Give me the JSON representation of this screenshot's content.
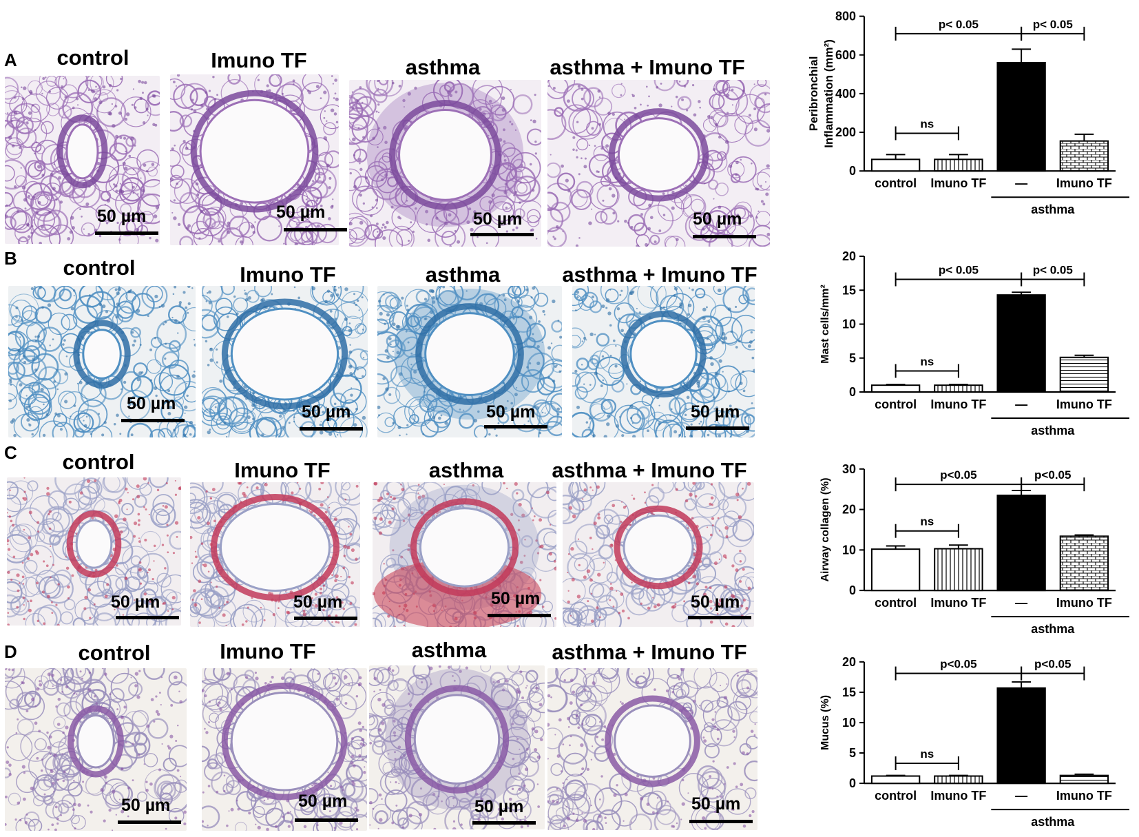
{
  "rows": [
    {
      "letter": "A",
      "panels": [
        {
          "title": "control",
          "scale": "50 µm",
          "stain": "he",
          "lumen": "small"
        },
        {
          "title": "Imuno TF",
          "scale": "50 µm",
          "stain": "he",
          "lumen": "large"
        },
        {
          "title": "asthma",
          "scale": "50 µm",
          "stain": "he",
          "lumen": "inflamed"
        },
        {
          "title": "asthma + Imuno TF",
          "scale": "50 µm",
          "stain": "he",
          "lumen": "medium"
        }
      ]
    },
    {
      "letter": "B",
      "panels": [
        {
          "title": "control",
          "scale": "50 µm",
          "stain": "blue",
          "lumen": "small"
        },
        {
          "title": "Imuno TF",
          "scale": "50 µm",
          "stain": "blue",
          "lumen": "large"
        },
        {
          "title": "asthma",
          "scale": "50 µm",
          "stain": "blue",
          "lumen": "inflamed"
        },
        {
          "title": "asthma + Imuno TF",
          "scale": "50 µm",
          "stain": "blue",
          "lumen": "medium"
        }
      ]
    },
    {
      "letter": "C",
      "panels": [
        {
          "title": "control",
          "scale": "50 µm",
          "stain": "sirius",
          "lumen": "small"
        },
        {
          "title": "Imuno TF",
          "scale": "50 µm",
          "stain": "sirius",
          "lumen": "large"
        },
        {
          "title": "asthma",
          "scale": "50 µm",
          "stain": "sirius",
          "lumen": "inflamed"
        },
        {
          "title": "asthma + Imuno TF",
          "scale": "50 µm",
          "stain": "sirius",
          "lumen": "medium"
        }
      ]
    },
    {
      "letter": "D",
      "panels": [
        {
          "title": "control",
          "scale": "50 µm",
          "stain": "pas",
          "lumen": "small"
        },
        {
          "title": "Imuno TF",
          "scale": "50 µm",
          "stain": "pas",
          "lumen": "large"
        },
        {
          "title": "asthma",
          "scale": "50 µm",
          "stain": "pas",
          "lumen": "inflamed"
        },
        {
          "title": "asthma + Imuno TF",
          "scale": "50 µm",
          "stain": "pas",
          "lumen": "medium"
        }
      ]
    }
  ],
  "stain_colors": {
    "he": {
      "bg": "#f3eef4",
      "tissue": "#9c6fb6",
      "ring": "#7b4a9c"
    },
    "blue": {
      "bg": "#eef1f3",
      "tissue": "#4f8fc2",
      "ring": "#2f6fa6"
    },
    "sirius": {
      "bg": "#f2eef0",
      "tissue": "#9aa0c6",
      "ring": "#c23a5a"
    },
    "pas": {
      "bg": "#f3f0ec",
      "tissue": "#9a8fbc",
      "ring": "#8a5aa6"
    }
  },
  "chart_data": [
    {
      "type": "bar",
      "ylabel_line1": "Peribronchial",
      "ylabel_line2": "Inflammation (mm²)",
      "ylim": [
        0,
        800
      ],
      "yticks": [
        "0",
        "200",
        "400",
        "600",
        "800"
      ],
      "categories": [
        "control",
        "Imuno TF",
        "—",
        "Imuno TF"
      ],
      "values": [
        60,
        60,
        560,
        155
      ],
      "errors": [
        25,
        25,
        70,
        35
      ],
      "patterns": [
        "open",
        "vstripe",
        "solid",
        "brick"
      ],
      "group_label": "asthma",
      "comparisons": [
        {
          "from": 0,
          "to": 2,
          "label": "p< 0.05",
          "at": 710
        },
        {
          "from": 2,
          "to": 3,
          "label": "p< 0.05",
          "at": 710
        },
        {
          "from": 0,
          "to": 1,
          "label": "ns",
          "at": 195
        }
      ]
    },
    {
      "type": "bar",
      "ylabel_line1": "",
      "ylabel_line2": "Mast cells/mm²",
      "ylim": [
        0,
        20
      ],
      "yticks": [
        "0",
        "5",
        "10",
        "15",
        "20"
      ],
      "categories": [
        "control",
        "Imuno TF",
        "—",
        "Imuno TF"
      ],
      "values": [
        1,
        1,
        14.3,
        5.1
      ],
      "errors": [
        0.1,
        0.1,
        0.4,
        0.3
      ],
      "patterns": [
        "open",
        "vstripe",
        "solid",
        "hstripe"
      ],
      "group_label": "asthma",
      "comparisons": [
        {
          "from": 0,
          "to": 2,
          "label": "p< 0.05",
          "at": 16.6
        },
        {
          "from": 2,
          "to": 3,
          "label": "p< 0.05",
          "at": 16.6
        },
        {
          "from": 0,
          "to": 1,
          "label": "ns",
          "at": 3.1
        }
      ]
    },
    {
      "type": "bar",
      "ylabel_line1": "",
      "ylabel_line2": "Airway collagen (%)",
      "ylim": [
        0,
        30
      ],
      "yticks": [
        "0",
        "10",
        "20",
        "30"
      ],
      "categories": [
        "control",
        "Imuno TF",
        "—",
        "Imuno TF"
      ],
      "values": [
        10.2,
        10.3,
        23.5,
        13.4
      ],
      "errors": [
        0.8,
        0.9,
        1.2,
        0.3
      ],
      "patterns": [
        "open",
        "vstripe",
        "solid",
        "brick"
      ],
      "group_label": "asthma",
      "comparisons": [
        {
          "from": 0,
          "to": 2,
          "label": "p<0.05",
          "at": 26.2
        },
        {
          "from": 2,
          "to": 3,
          "label": "p<0.05",
          "at": 26.2
        },
        {
          "from": 0,
          "to": 1,
          "label": "ns",
          "at": 14.7
        }
      ]
    },
    {
      "type": "bar",
      "ylabel_line1": "",
      "ylabel_line2": "Mucus (%)",
      "ylim": [
        0,
        20
      ],
      "yticks": [
        "0",
        "5",
        "10",
        "15",
        "20"
      ],
      "categories": [
        "control",
        "Imuno TF",
        "—",
        "Imuno TF"
      ],
      "values": [
        1.2,
        1.2,
        15.7,
        1.3
      ],
      "errors": [
        0.1,
        0.1,
        1.0,
        0.2
      ],
      "patterns": [
        "open",
        "vstripe",
        "solid",
        "hstripe"
      ],
      "group_label": "asthma",
      "comparisons": [
        {
          "from": 0,
          "to": 2,
          "label": "p<0.05",
          "at": 18.1
        },
        {
          "from": 2,
          "to": 3,
          "label": "p<0.05",
          "at": 18.1
        },
        {
          "from": 0,
          "to": 1,
          "label": "ns",
          "at": 3.3
        }
      ]
    }
  ]
}
